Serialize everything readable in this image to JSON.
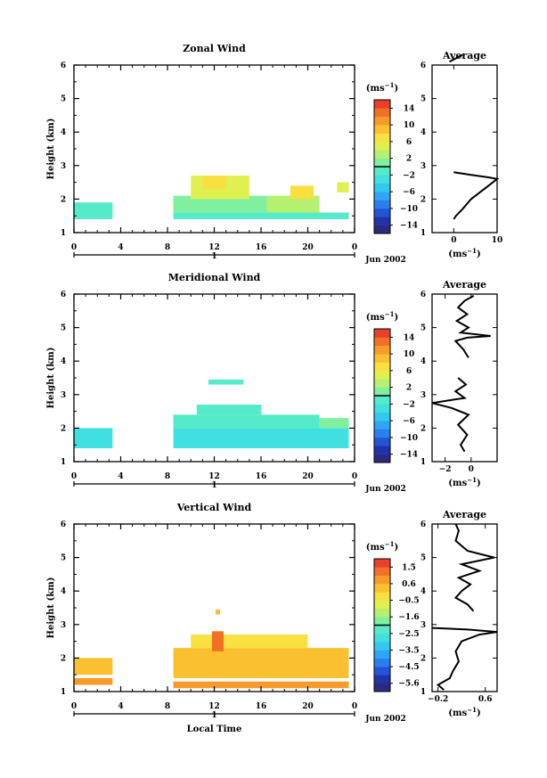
{
  "chart_data": [
    {
      "type": "heatmap",
      "title": "Zonal Wind",
      "ylabel": "Height (km)",
      "xlabel": "",
      "x_ticks": [
        "0",
        "4",
        "8",
        "12",
        "16",
        "20",
        "0"
      ],
      "y_ticks": [
        "1",
        "2",
        "3",
        "4",
        "5",
        "6"
      ],
      "xlim": [
        0,
        24
      ],
      "ylim": [
        1,
        6
      ],
      "day_label": "1",
      "date_label": "Jun 2002",
      "colorbar": {
        "unit": "(ms",
        "unit_exp": "−1",
        "unit_close": ")",
        "ticks": [
          "14",
          "10",
          "6",
          "2",
          "−2",
          "−6",
          "−10",
          "−14"
        ],
        "min": -16,
        "max": 16
      },
      "cells": [
        {
          "x": [
            0,
            3.3
          ],
          "y": [
            1.4,
            1.9
          ],
          "v": -1
        },
        {
          "x": [
            8.5,
            23.5
          ],
          "y": [
            1.4,
            1.6
          ],
          "v": -1
        },
        {
          "x": [
            8.5,
            16.5
          ],
          "y": [
            1.6,
            2.1
          ],
          "v": 1
        },
        {
          "x": [
            10,
            15
          ],
          "y": [
            2.0,
            2.7
          ],
          "v": 5
        },
        {
          "x": [
            11,
            13
          ],
          "y": [
            2.3,
            2.7
          ],
          "v": 7
        },
        {
          "x": [
            16.5,
            21
          ],
          "y": [
            1.6,
            2.1
          ],
          "v": 3
        },
        {
          "x": [
            18.5,
            20.5
          ],
          "y": [
            2.0,
            2.4
          ],
          "v": 6
        },
        {
          "x": [
            22.5,
            23.5
          ],
          "y": [
            2.2,
            2.5
          ],
          "v": 5
        }
      ],
      "average": {
        "title": "Average",
        "xlabel": "(ms",
        "xlabel_exp": "−1",
        "xlabel_close": ")",
        "x_ticks": [
          "0",
          "10"
        ],
        "y_ticks": [
          "1",
          "2",
          "3",
          "4",
          "5",
          "6"
        ],
        "xlim": [
          -5,
          10
        ],
        "ylim": [
          1,
          6
        ],
        "profile": [
          [
            0,
            1.4
          ],
          [
            0.5,
            1.5
          ],
          [
            2,
            1.7
          ],
          [
            4,
            2.0
          ],
          [
            6,
            2.2
          ],
          [
            8,
            2.4
          ],
          [
            10,
            2.6
          ],
          [
            8,
            2.65
          ],
          [
            4,
            2.72
          ],
          [
            0,
            2.8
          ]
        ],
        "profile2": [
          [
            -1,
            6.1
          ],
          [
            0.5,
            6.2
          ],
          [
            2,
            6.3
          ]
        ]
      }
    },
    {
      "type": "heatmap",
      "title": "Meridional Wind",
      "ylabel": "Height (km)",
      "xlabel": "",
      "x_ticks": [
        "0",
        "4",
        "8",
        "12",
        "16",
        "20",
        "0"
      ],
      "y_ticks": [
        "1",
        "2",
        "3",
        "4",
        "5",
        "6"
      ],
      "xlim": [
        0,
        24
      ],
      "ylim": [
        1,
        6
      ],
      "day_label": "1",
      "date_label": "Jun 2002",
      "colorbar": {
        "unit": "(ms",
        "unit_exp": "−1",
        "unit_close": ")",
        "ticks": [
          "14",
          "10",
          "6",
          "2",
          "−2",
          "−6",
          "−10",
          "−14"
        ],
        "min": -16,
        "max": 16
      },
      "cells": [
        {
          "x": [
            0,
            3.3
          ],
          "y": [
            1.4,
            2.0
          ],
          "v": -3
        },
        {
          "x": [
            8.5,
            23.5
          ],
          "y": [
            1.4,
            2.0
          ],
          "v": -3
        },
        {
          "x": [
            8.5,
            21
          ],
          "y": [
            2.0,
            2.4
          ],
          "v": -2
        },
        {
          "x": [
            10.5,
            16
          ],
          "y": [
            2.4,
            2.7
          ],
          "v": -1
        },
        {
          "x": [
            21,
            23.5
          ],
          "y": [
            2.0,
            2.3
          ],
          "v": 1
        },
        {
          "x": [
            11.5,
            14.5
          ],
          "y": [
            3.3,
            3.45
          ],
          "v": -1
        }
      ],
      "average": {
        "title": "Average",
        "xlabel": "(ms",
        "xlabel_exp": "−1",
        "xlabel_close": ")",
        "x_ticks": [
          "−2",
          "0"
        ],
        "y_ticks": [
          "1",
          "2",
          "3",
          "4",
          "5",
          "6"
        ],
        "xlim": [
          -3,
          2
        ],
        "ylim": [
          1,
          6
        ],
        "profile": [
          [
            -0.5,
            1.3
          ],
          [
            -0.8,
            1.5
          ],
          [
            -0.3,
            1.8
          ],
          [
            -1,
            2.1
          ],
          [
            -0.2,
            2.4
          ],
          [
            -1.5,
            2.6
          ],
          [
            -3,
            2.75
          ],
          [
            -0.5,
            2.9
          ],
          [
            -1.2,
            3.1
          ],
          [
            -0.4,
            3.3
          ],
          [
            -1,
            3.5
          ]
        ],
        "profile2": [
          [
            -0.2,
            4.1
          ],
          [
            -0.6,
            4.35
          ],
          [
            -1.2,
            4.6
          ],
          [
            -0.3,
            4.7
          ],
          [
            1.5,
            4.75
          ],
          [
            -0.8,
            4.85
          ],
          [
            -0.2,
            5.0
          ],
          [
            -1.1,
            5.2
          ],
          [
            -0.3,
            5.4
          ],
          [
            -1,
            5.6
          ],
          [
            -0.5,
            5.8
          ],
          [
            0.2,
            5.95
          ]
        ]
      }
    },
    {
      "type": "heatmap",
      "title": "Vertical Wind",
      "ylabel": "Height (km)",
      "xlabel": "Local Time",
      "x_ticks": [
        "0",
        "4",
        "8",
        "12",
        "16",
        "20",
        "0"
      ],
      "y_ticks": [
        "1",
        "2",
        "3",
        "4",
        "5",
        "6"
      ],
      "xlim": [
        0,
        24
      ],
      "ylim": [
        1,
        6
      ],
      "day_label": "1",
      "date_label": "Jun 2002",
      "colorbar": {
        "unit": "(ms",
        "unit_exp": "−1",
        "unit_close": ")",
        "ticks": [
          "1.5",
          "0.6",
          "−0.5",
          "−1.6",
          "−2.5",
          "−3.5",
          "−4.5",
          "−5.6"
        ],
        "min": -6.0,
        "max": 2.0
      },
      "cells": [
        {
          "x": [
            0,
            3.3
          ],
          "y": [
            1.5,
            2.0
          ],
          "v": 0.2
        },
        {
          "x": [
            0,
            3.3
          ],
          "y": [
            1.2,
            1.4
          ],
          "v": 0.6
        },
        {
          "x": [
            8.5,
            23.5
          ],
          "y": [
            1.4,
            2.3
          ],
          "v": 0.0
        },
        {
          "x": [
            8.5,
            23.5
          ],
          "y": [
            1.1,
            1.3
          ],
          "v": 0.5
        },
        {
          "x": [
            10,
            20
          ],
          "y": [
            2.3,
            2.7
          ],
          "v": -0.2
        },
        {
          "x": [
            11.8,
            12.8
          ],
          "y": [
            2.2,
            2.8
          ],
          "v": 1.4
        },
        {
          "x": [
            12.1,
            12.5
          ],
          "y": [
            3.3,
            3.45
          ],
          "v": 0.4
        }
      ],
      "average": {
        "title": "Average",
        "xlabel": "(ms",
        "xlabel_exp": "−1",
        "xlabel_close": ")",
        "x_ticks": [
          "−0.2",
          "0.6"
        ],
        "y_ticks": [
          "1",
          "2",
          "3",
          "4",
          "5",
          "6"
        ],
        "xlim": [
          -0.3,
          0.8
        ],
        "ylim": [
          1,
          6
        ],
        "profile": [
          [
            -0.1,
            1.05
          ],
          [
            -0.2,
            1.2
          ],
          [
            0,
            1.4
          ],
          [
            0.05,
            1.6
          ],
          [
            0.15,
            1.9
          ],
          [
            0.1,
            2.2
          ],
          [
            0.2,
            2.5
          ],
          [
            0.5,
            2.7
          ],
          [
            0.8,
            2.78
          ],
          [
            0.3,
            2.85
          ],
          [
            -0.3,
            2.9
          ]
        ],
        "profile2": [
          [
            0.4,
            3.4
          ],
          [
            0.3,
            3.6
          ],
          [
            0.1,
            3.8
          ],
          [
            0.2,
            4.0
          ],
          [
            0.35,
            4.2
          ],
          [
            0.15,
            4.4
          ],
          [
            0.5,
            4.6
          ],
          [
            0.2,
            4.8
          ],
          [
            0.75,
            5.0
          ],
          [
            0.3,
            5.2
          ],
          [
            0.1,
            5.5
          ],
          [
            0.15,
            5.8
          ],
          [
            0.1,
            6.0
          ]
        ]
      }
    }
  ]
}
